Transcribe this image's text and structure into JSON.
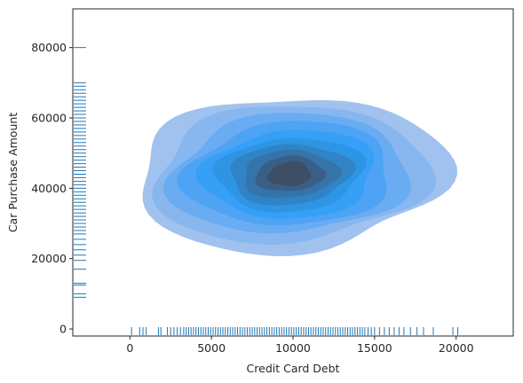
{
  "chart_data": {
    "type": "kde-contour-with-rug",
    "title": "",
    "xlabel": "Credit Card Debt",
    "ylabel": "Car Purchase Amount",
    "xlim": [
      -3500,
      23500
    ],
    "ylim": [
      -2000,
      91000
    ],
    "xticks": [
      0,
      5000,
      10000,
      15000,
      20000
    ],
    "yticks": [
      0,
      20000,
      40000,
      60000,
      80000
    ],
    "grid": false,
    "legend": "none",
    "colors": {
      "fill": "#3b8cf0",
      "fill_darkest": "#3c4f66",
      "rug": "#1f77b4",
      "frame": "#262626"
    },
    "kde_center": [
      9800,
      44000
    ],
    "kde_levels": [
      {
        "level": 1,
        "rx": 9500,
        "ry": 22000,
        "color": "#a1c2ee"
      },
      {
        "level": 2,
        "rx": 8400,
        "ry": 19500,
        "color": "#88b7f0"
      },
      {
        "level": 3,
        "rx": 7300,
        "ry": 17000,
        "color": "#6aacf2"
      },
      {
        "level": 4,
        "rx": 6300,
        "ry": 14800,
        "color": "#4fa3f5"
      },
      {
        "level": 5,
        "rx": 5300,
        "ry": 12600,
        "color": "#35a0f6"
      },
      {
        "level": 6,
        "rx": 4500,
        "ry": 10500,
        "color": "#2d95e4"
      },
      {
        "level": 7,
        "rx": 3700,
        "ry": 8600,
        "color": "#3083c4"
      },
      {
        "level": 8,
        "rx": 2900,
        "ry": 6800,
        "color": "#3474a8"
      },
      {
        "level": 9,
        "rx": 2100,
        "ry": 5000,
        "color": "#3a5f86"
      },
      {
        "level": 10,
        "rx": 1300,
        "ry": 3500,
        "color": "#3c4f66"
      }
    ],
    "rug_x": [
      100,
      600,
      800,
      1000,
      1750,
      1900,
      2300,
      2500,
      2700,
      2900,
      3100,
      3300,
      3450,
      3600,
      3750,
      3900,
      4050,
      4200,
      4350,
      4500,
      4650,
      4800,
      4950,
      5100,
      5250,
      5400,
      5550,
      5700,
      5850,
      6000,
      6150,
      6300,
      6450,
      6600,
      6750,
      6900,
      7050,
      7200,
      7350,
      7500,
      7650,
      7800,
      7950,
      8100,
      8250,
      8400,
      8550,
      8700,
      8850,
      9000,
      9150,
      9300,
      9450,
      9600,
      9750,
      9900,
      10050,
      10200,
      10350,
      10500,
      10650,
      10800,
      10950,
      11100,
      11250,
      11400,
      11550,
      11700,
      11850,
      12000,
      12150,
      12300,
      12450,
      12600,
      12750,
      12900,
      13050,
      13200,
      13350,
      13500,
      13650,
      13800,
      13950,
      14100,
      14250,
      14400,
      14600,
      14800,
      15000,
      15300,
      15600,
      15900,
      16200,
      16500,
      16800,
      17200,
      17600,
      18000,
      18600,
      19800,
      20100
    ],
    "rug_y": [
      9000,
      10000,
      12500,
      13000,
      17000,
      19500,
      21000,
      22500,
      24000,
      25500,
      27000,
      28000,
      29000,
      30000,
      31000,
      32000,
      33000,
      34000,
      35000,
      36000,
      37000,
      38000,
      39000,
      40000,
      41000,
      42000,
      43000,
      44000,
      45000,
      46000,
      47000,
      48000,
      49000,
      50000,
      51000,
      52000,
      53000,
      54000,
      55000,
      56000,
      57000,
      58000,
      59000,
      60000,
      61000,
      62000,
      63000,
      64000,
      65000,
      66000,
      67000,
      68000,
      69000,
      70000,
      80000
    ]
  }
}
